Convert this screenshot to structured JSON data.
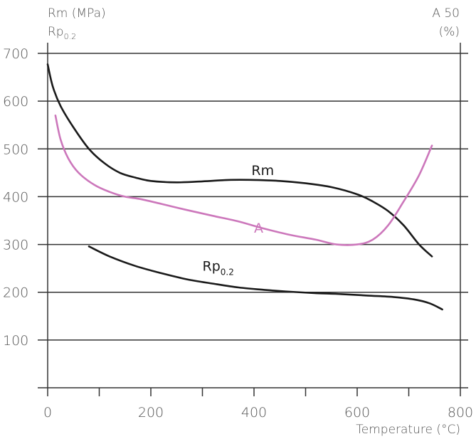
{
  "chart_data": {
    "type": "line",
    "title": "",
    "xlabel": "Temperature (°C)",
    "ylabel_left_line1": "Rm (MPa)",
    "ylabel_left_line2_main": "Rp",
    "ylabel_left_line2_sub": "0.2",
    "ylabel_right_line1": "A 50",
    "ylabel_right_line2": "(%)",
    "xlim": [
      0,
      800
    ],
    "ylim": [
      0,
      700
    ],
    "x_ticks": [
      0,
      200,
      400,
      600,
      800
    ],
    "y_ticks": [
      100,
      200,
      300,
      400,
      500,
      600,
      700
    ],
    "grid": "horizontal",
    "series": [
      {
        "name": "Rm",
        "color": "#1a1a1a",
        "x": [
          0,
          10,
          25,
          50,
          80,
          110,
          140,
          170,
          200,
          250,
          300,
          350,
          400,
          450,
          500,
          550,
          600,
          630,
          660,
          690,
          720,
          745
        ],
        "y": [
          677,
          630,
          590,
          545,
          500,
          470,
          450,
          440,
          433,
          430,
          432,
          435,
          435,
          433,
          428,
          420,
          405,
          390,
          370,
          340,
          300,
          275
        ]
      },
      {
        "name": "A",
        "color": "#cc77bb",
        "x": [
          15,
          25,
          40,
          60,
          90,
          120,
          150,
          180,
          220,
          270,
          320,
          370,
          420,
          470,
          520,
          560,
          600,
          630,
          660,
          690,
          720,
          745
        ],
        "y": [
          570,
          520,
          480,
          450,
          425,
          410,
          400,
          395,
          385,
          372,
          360,
          348,
          333,
          320,
          310,
          300,
          300,
          310,
          340,
          390,
          445,
          507
        ]
      },
      {
        "name": "Rp",
        "name_sub": "0.2",
        "color": "#1a1a1a",
        "x": [
          80,
          120,
          170,
          220,
          270,
          320,
          370,
          420,
          470,
          520,
          570,
          620,
          670,
          710,
          740,
          765
        ],
        "y": [
          296,
          275,
          255,
          240,
          227,
          218,
          210,
          205,
          201,
          198,
          196,
          193,
          190,
          185,
          177,
          164
        ]
      }
    ]
  }
}
